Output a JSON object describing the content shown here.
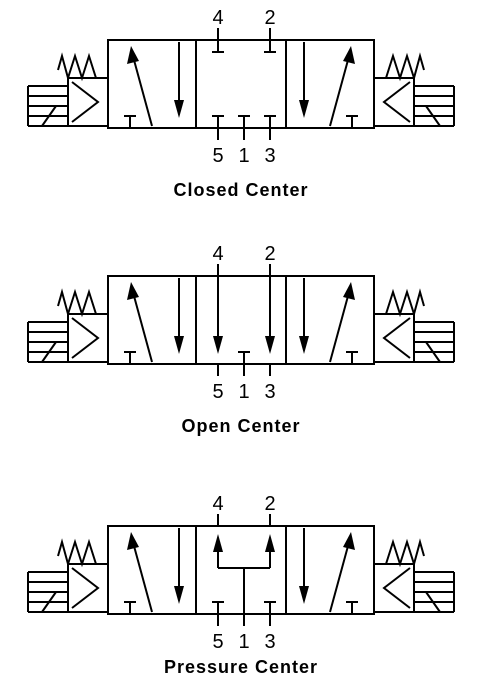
{
  "valves": [
    {
      "id": "closed",
      "caption": "Closed Center",
      "ports_top": [
        "4",
        "2"
      ],
      "ports_bottom": [
        "5",
        "1",
        "3"
      ],
      "center_type": "closed"
    },
    {
      "id": "open",
      "caption": "Open Center",
      "ports_top": [
        "4",
        "2"
      ],
      "ports_bottom": [
        "5",
        "1",
        "3"
      ],
      "center_type": "open"
    },
    {
      "id": "pressure",
      "caption": "Pressure Center",
      "ports_top": [
        "4",
        "2"
      ],
      "ports_bottom": [
        "5",
        "1",
        "3"
      ],
      "center_type": "pressure"
    }
  ],
  "colors": {
    "line": "#000000",
    "background": "#ffffff"
  }
}
